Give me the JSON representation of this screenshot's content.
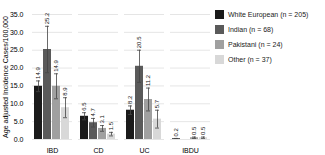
{
  "chart_data": {
    "type": "bar",
    "categories": [
      "IBD",
      "CD",
      "UC",
      "IBDU"
    ],
    "series": [
      {
        "name": "White European (n = 205)",
        "color": "#1a1a1a",
        "values": [
          14.9,
          6.5,
          8.2,
          0.2
        ],
        "errors": [
          1.5,
          1.0,
          1.2,
          0.1
        ]
      },
      {
        "name": "Indian (n = 68)",
        "color": "#5a5a5a",
        "values": [
          25.2,
          4.7,
          20.5,
          0.0
        ],
        "errors": [
          6.5,
          1.2,
          4.5,
          0.0
        ]
      },
      {
        "name": "Pakistani (n = 24)",
        "color": "#a0a0a0",
        "values": [
          14.9,
          3.1,
          11.2,
          0.5
        ],
        "errors": [
          3.5,
          0.8,
          3.2,
          0.2
        ]
      },
      {
        "name": "Other (n = 37)",
        "color": "#d8d8d8",
        "values": [
          8.9,
          1.5,
          5.7,
          0.5
        ],
        "errors": [
          2.8,
          0.5,
          2.5,
          0.2
        ]
      }
    ],
    "ylim": [
      0,
      35
    ],
    "yticks": [
      {
        "value": 0,
        "label": "0.0"
      },
      {
        "value": 5,
        "label": "5.0"
      },
      {
        "value": 10,
        "label": "10.0"
      },
      {
        "value": 15,
        "label": "15.0"
      },
      {
        "value": 20,
        "label": "20.0"
      },
      {
        "value": 25,
        "label": "25.0"
      },
      {
        "value": 30,
        "label": "30.0"
      },
      {
        "value": 35,
        "label": "35.0"
      }
    ],
    "ylabel": "Age adjusted Incidence Cases/100,000",
    "grid": true,
    "data_labels": true,
    "legend": "right"
  }
}
